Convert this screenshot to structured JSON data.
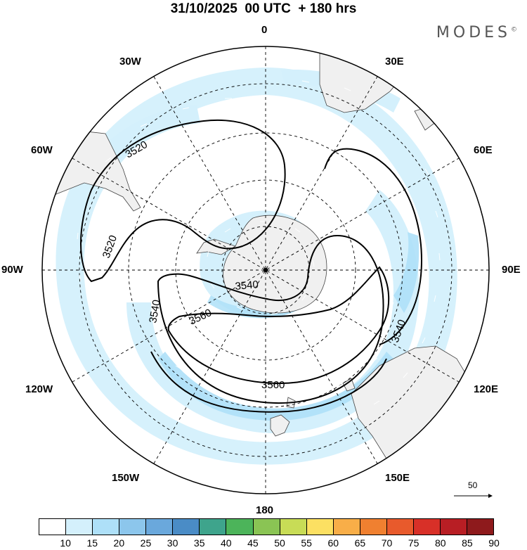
{
  "header": {
    "title": "31/10/2025  00 UTC  + 180 hrs",
    "brand": "MODES",
    "brand_mark": "©"
  },
  "map": {
    "projection": "polar-stereographic-south",
    "longitude_labels": {
      "top": "0",
      "top_right_1": "30E",
      "top_right_2": "60E",
      "right": "90E",
      "bottom_right_1": "120E",
      "bottom_right_2": "150E",
      "bottom": "180",
      "bottom_left_2": "150W",
      "bottom_left_1": "120W",
      "left": "90W",
      "top_left_2": "60W",
      "top_left_1": "30W"
    },
    "contour_labels": [
      "3520",
      "3520",
      "3540",
      "3540",
      "3540",
      "3560",
      "3560"
    ],
    "colors": {
      "land": "#f0f0f0",
      "coast": "#444444",
      "contour": "#000000",
      "grid": "#000000"
    }
  },
  "reference_vector": {
    "label": "50"
  },
  "colorbar": {
    "labels": [
      "10",
      "15",
      "20",
      "25",
      "30",
      "35",
      "40",
      "45",
      "50",
      "55",
      "60",
      "65",
      "70",
      "75",
      "80",
      "85",
      "90"
    ],
    "colors": [
      "#ffffff",
      "#d4f0fc",
      "#aee0f8",
      "#8cc6ec",
      "#6aa8dc",
      "#4a8cc6",
      "#3ea48c",
      "#4cb45a",
      "#8ac454",
      "#c8dc56",
      "#fce062",
      "#f8ae48",
      "#f08030",
      "#e85a2c",
      "#d83028",
      "#b81e24",
      "#8e1a1c"
    ]
  }
}
